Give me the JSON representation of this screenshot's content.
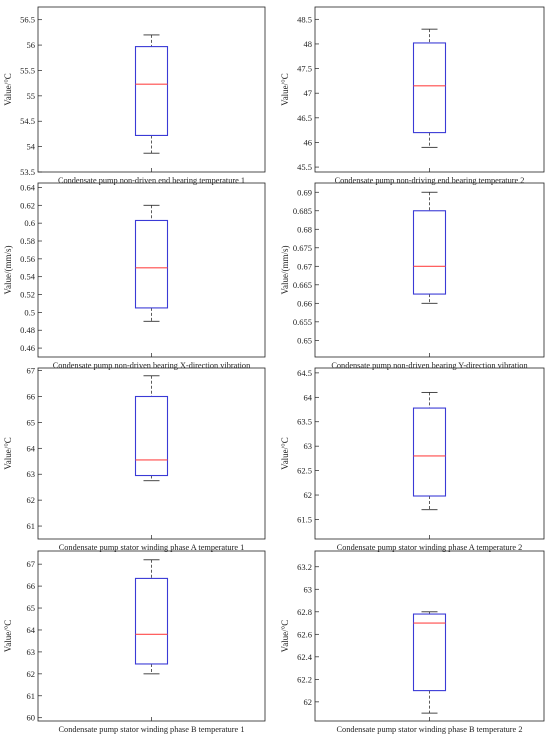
{
  "chart_data": [
    {
      "type": "box",
      "title": "Condensate pump non-driven end bearing temperature 1",
      "ylabel": "Value/°C",
      "ylim": [
        53.5,
        56.75
      ],
      "yticks": [
        53.5,
        54,
        54.5,
        55,
        55.5,
        56,
        56.5
      ],
      "yticklabels": [
        "53.5",
        "54",
        "54.5",
        "55",
        "55.5",
        "56",
        "56.5"
      ],
      "box": {
        "whisker_low": 53.87,
        "q1": 54.22,
        "median": 55.23,
        "q3": 55.97,
        "whisker_high": 56.2
      }
    },
    {
      "type": "box",
      "title": "Condensate pump non-driving end bearing temperature 2",
      "ylabel": "Value/°C",
      "ylim": [
        45.4,
        48.75
      ],
      "yticks": [
        45.5,
        46,
        46.5,
        47,
        47.5,
        48,
        48.5
      ],
      "yticklabels": [
        "45.5",
        "46",
        "46.5",
        "47",
        "47.5",
        "48",
        "48.5"
      ],
      "box": {
        "whisker_low": 45.9,
        "q1": 46.2,
        "median": 47.15,
        "q3": 48.02,
        "whisker_high": 48.3
      }
    },
    {
      "type": "box",
      "title": "Condensate pump non-driven bearing X-direction vibration",
      "ylabel": "Value/(mm/s)",
      "ylim": [
        0.45,
        0.645
      ],
      "yticks": [
        0.46,
        0.48,
        0.5,
        0.52,
        0.54,
        0.56,
        0.58,
        0.6,
        0.62,
        0.64
      ],
      "yticklabels": [
        "0.46",
        "0.48",
        "0.5",
        "0.52",
        "0.54",
        "0.56",
        "0.58",
        "0.6",
        "0.62",
        "0.64"
      ],
      "box": {
        "whisker_low": 0.49,
        "q1": 0.505,
        "median": 0.55,
        "q3": 0.603,
        "whisker_high": 0.62
      }
    },
    {
      "type": "box",
      "title": "Condensate pump non-driven bearing Y-direction vibration",
      "ylabel": "Value/(mm/s)",
      "ylim": [
        0.6455,
        0.6925
      ],
      "yticks": [
        0.65,
        0.655,
        0.66,
        0.665,
        0.67,
        0.675,
        0.68,
        0.685,
        0.69
      ],
      "yticklabels": [
        "0.65",
        "0.655",
        "0.66",
        "0.665",
        "0.67",
        "0.675",
        "0.68",
        "0.685",
        "0.69"
      ],
      "box": {
        "whisker_low": 0.66,
        "q1": 0.6625,
        "median": 0.67,
        "q3": 0.685,
        "whisker_high": 0.69
      }
    },
    {
      "type": "box",
      "title": "Condensate pump stator winding phase A temperature 1",
      "ylabel": "Value/°C",
      "ylim": [
        60.5,
        67.1
      ],
      "yticks": [
        61,
        62,
        63,
        64,
        65,
        66,
        67
      ],
      "yticklabels": [
        "61",
        "62",
        "63",
        "64",
        "65",
        "66",
        "67"
      ],
      "box": {
        "whisker_low": 62.75,
        "q1": 62.95,
        "median": 63.55,
        "q3": 66.0,
        "whisker_high": 66.8
      }
    },
    {
      "type": "box",
      "title": "Condensate pump stator winding phase A temperature 2",
      "ylabel": "Value/°C",
      "ylim": [
        61.1,
        64.6
      ],
      "yticks": [
        61.5,
        62,
        62.5,
        63,
        63.5,
        64,
        64.5
      ],
      "yticklabels": [
        "61.5",
        "62",
        "62.5",
        "63",
        "63.5",
        "64",
        "64.5"
      ],
      "box": {
        "whisker_low": 61.7,
        "q1": 61.98,
        "median": 62.8,
        "q3": 63.78,
        "whisker_high": 64.1
      }
    },
    {
      "type": "box",
      "title": "Condensate pump stator winding phase B temperature 1",
      "ylabel": "Value/°C",
      "ylim": [
        59.85,
        67.6
      ],
      "yticks": [
        60,
        61,
        62,
        63,
        64,
        65,
        66,
        67
      ],
      "yticklabels": [
        "60",
        "61",
        "62",
        "63",
        "64",
        "65",
        "66",
        "67"
      ],
      "box": {
        "whisker_low": 62.0,
        "q1": 62.45,
        "median": 63.8,
        "q3": 66.35,
        "whisker_high": 67.2
      }
    },
    {
      "type": "box",
      "title": "Condensate pump stator winding phase B temperature 2",
      "ylabel": "Value/°C",
      "ylim": [
        61.83,
        63.34
      ],
      "yticks": [
        62,
        62.2,
        62.4,
        62.6,
        62.8,
        63,
        63.2
      ],
      "yticklabels": [
        "62",
        "62.2",
        "62.4",
        "62.6",
        "62.8",
        "63",
        "63.2"
      ],
      "box": {
        "whisker_low": 61.9,
        "q1": 62.1,
        "median": 62.7,
        "q3": 62.78,
        "whisker_high": 62.8
      }
    }
  ]
}
